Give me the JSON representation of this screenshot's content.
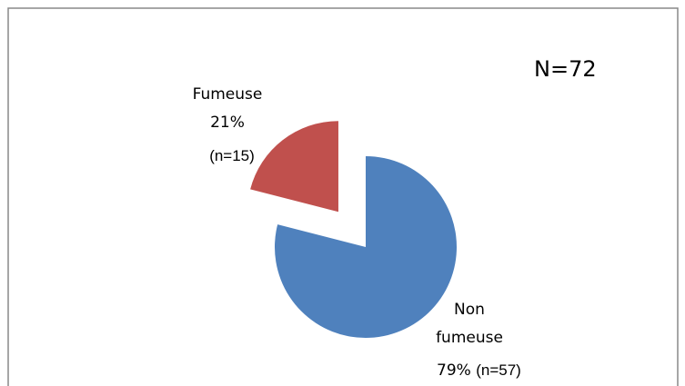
{
  "chart_data": {
    "type": "pie",
    "annotation": "N=72",
    "categories": [
      "Non fumeuse",
      "Fumeuse"
    ],
    "values": [
      79,
      21
    ],
    "value_labels": [
      "79%",
      "21%"
    ],
    "counts": [
      57,
      15
    ],
    "count_labels": [
      "(n=57)",
      "(n=15)"
    ],
    "colors": [
      "#4f81bd",
      "#c0504d"
    ]
  }
}
